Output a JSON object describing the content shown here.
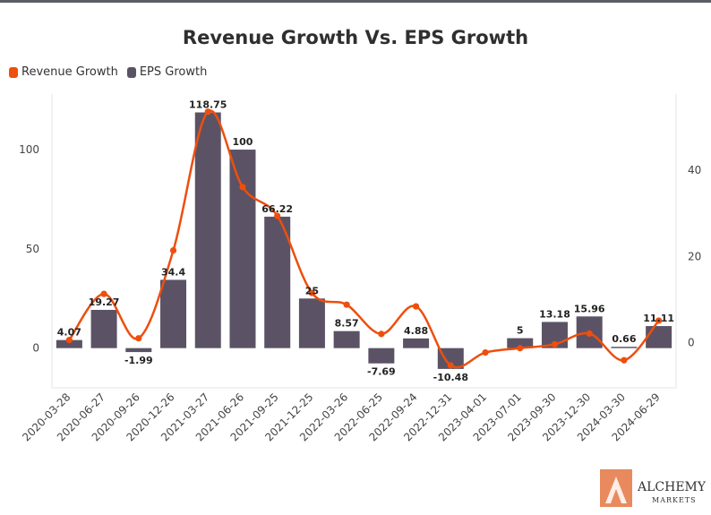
{
  "chart_data": {
    "type": "bar",
    "title": "Revenue Growth Vs. EPS Growth",
    "legend_placement": "top-left",
    "categories": [
      "2020-03-28",
      "2020-06-27",
      "2020-09-26",
      "2020-12-26",
      "2021-03-27",
      "2021-06-26",
      "2021-09-25",
      "2021-12-25",
      "2022-03-26",
      "2022-06-25",
      "2022-09-24",
      "2022-12-31",
      "2023-04-01",
      "2023-07-01",
      "2023-09-30",
      "2023-12-30",
      "2024-03-30",
      "2024-06-29"
    ],
    "series": [
      {
        "name": "EPS Growth",
        "type": "bar",
        "axis": "left",
        "color": "#5b5365",
        "values": [
          4.07,
          19.27,
          -1.99,
          34.4,
          118.75,
          100,
          66.22,
          25,
          8.57,
          -7.69,
          4.88,
          -10.48,
          null,
          5,
          13.18,
          15.96,
          0.66,
          11.11
        ],
        "labels": [
          "4.07",
          "19.27",
          "-1.99",
          "34.4",
          "118.75",
          "100",
          "66.22",
          "25",
          "8.57",
          "-7.69",
          "4.88",
          "-10.48",
          "",
          "5",
          "13.18",
          "15.96",
          "0.66",
          "11.11"
        ]
      },
      {
        "name": "Revenue Growth",
        "type": "line",
        "axis": "right",
        "color": "#ee4e0e",
        "values": [
          0.6,
          11.3,
          1.0,
          21.4,
          53.6,
          36.1,
          29.4,
          11.5,
          8.8,
          2.0,
          8.4,
          -5.3,
          -2.3,
          -1.3,
          -0.4,
          2.1,
          -4.1,
          5.1
        ]
      }
    ],
    "y_left": {
      "ticks": [
        0,
        50,
        100
      ],
      "ylim": [
        -20,
        128
      ]
    },
    "y_right": {
      "ticks": [
        0,
        20,
        40
      ],
      "ylim": [
        -10.5,
        57.7
      ]
    },
    "grid": false
  },
  "brand": {
    "name": "ALCHEMY",
    "sub": "MARKETS"
  }
}
